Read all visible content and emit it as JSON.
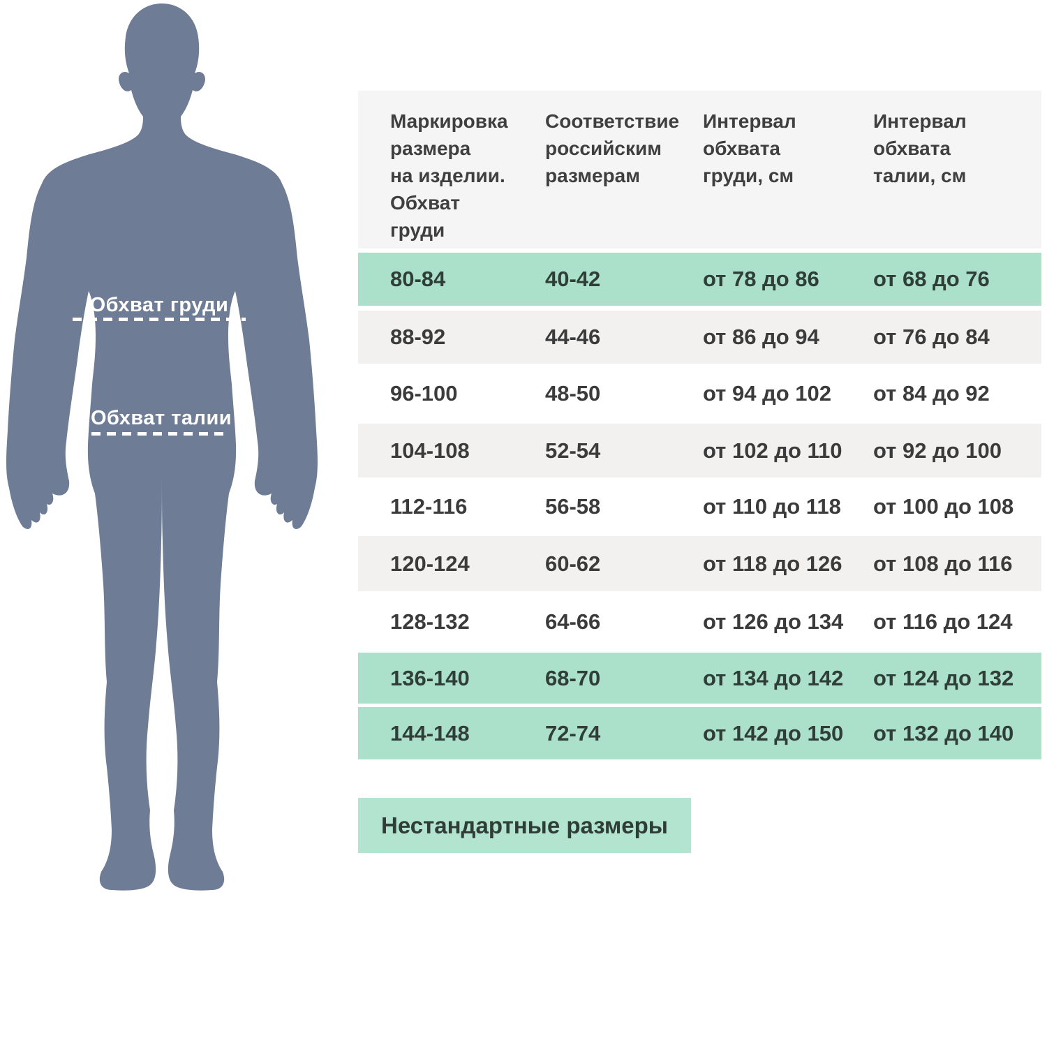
{
  "figure": {
    "chest_label": "Обхват груди",
    "waist_label": "Обхват талии"
  },
  "table": {
    "headers": [
      {
        "text": "Маркировка\nразмера\nна изделии.\nОбхват\nгруди"
      },
      {
        "text": "Соответствие\nроссийским\nразмерам"
      },
      {
        "text": "Интервал\nобхвата\nгруди, см"
      },
      {
        "text": "Интервал\nобхвата\nталии, см"
      }
    ],
    "rows": [
      {
        "mark": "80-84",
        "ru": "40-42",
        "chest": "от 78 до 86",
        "waist": "от 68 до 76",
        "style": "green"
      },
      {
        "mark": "88-92",
        "ru": "44-46",
        "chest": "от 86 до 94",
        "waist": "от 76 до 84",
        "style": "gray"
      },
      {
        "mark": "96-100",
        "ru": "48-50",
        "chest": "от 94 до 102",
        "waist": "от 84 до 92",
        "style": "white"
      },
      {
        "mark": "104-108",
        "ru": "52-54",
        "chest": "от 102 до 110",
        "waist": "от 92 до 100",
        "style": "gray"
      },
      {
        "mark": "112-116",
        "ru": "56-58",
        "chest": "от 110 до 118",
        "waist": "от 100 до 108",
        "style": "white"
      },
      {
        "mark": "120-124",
        "ru": "60-62",
        "chest": "от 118 до 126",
        "waist": "от 108 до 116",
        "style": "gray"
      },
      {
        "mark": "128-132",
        "ru": "64-66",
        "chest": "от 126 до 134",
        "waist": "от 116 до 124",
        "style": "white"
      },
      {
        "mark": "136-140",
        "ru": "68-70",
        "chest": "от 134 до 142",
        "waist": "от 124 до 132",
        "style": "green"
      },
      {
        "mark": "144-148",
        "ru": "72-74",
        "chest": "от 142 до 150",
        "waist": "от 132 до 140",
        "style": "green"
      }
    ]
  },
  "button": {
    "label": "Нестандартные размеры"
  },
  "colors": {
    "accent_green": "#abe1cb",
    "button_green": "#b3e4cf",
    "row_gray": "#f2f1f0",
    "header_bg": "#f6f5f5",
    "silhouette": "#6e7c96",
    "text": "#3b3b3b"
  }
}
